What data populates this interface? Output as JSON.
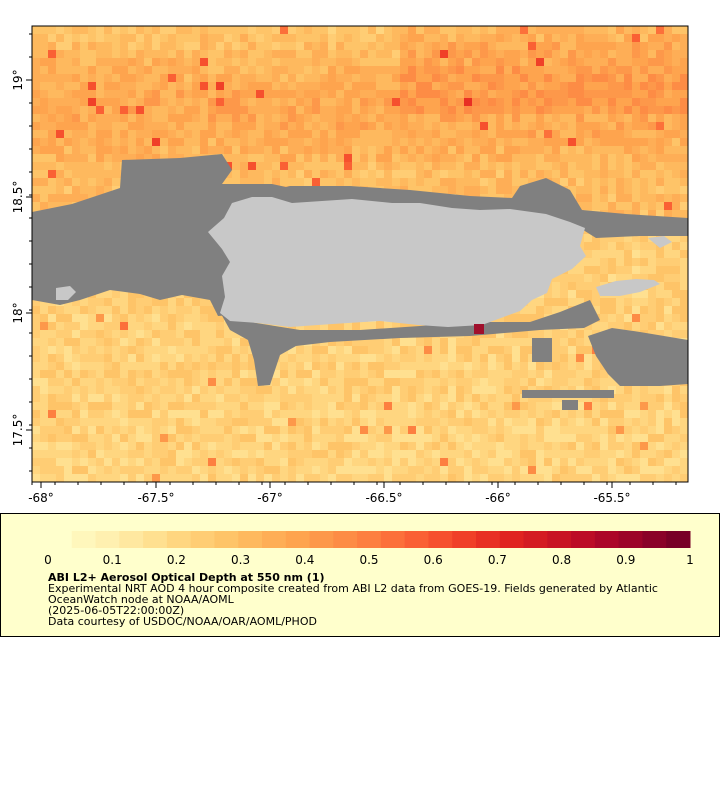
{
  "map": {
    "x_ticks": [
      "-68°",
      "-67.5°",
      "-67°",
      "-66.5°",
      "-66°",
      "-65.5°"
    ],
    "y_ticks": [
      "19°",
      "18.5°",
      "18°",
      "17.5°"
    ],
    "colors": {
      "land": "#c8c8c8",
      "no_data": "#808080",
      "hotspot": "#a0102c"
    }
  },
  "legend": {
    "scale_labels": [
      "0",
      "0.1",
      "0.2",
      "0.3",
      "0.4",
      "0.5",
      "0.6",
      "0.7",
      "0.8",
      "0.9",
      "1"
    ],
    "title": "ABI L2+ Aerosol Optical Depth at 550 nm (1)",
    "description": "Experimental NRT AOD 4 hour composite created from ABI L2 data from GOES-19. Fields generated by Atlantic OceanWatch node at NOAA/AOML",
    "timestamp": "(2025-06-05T22:00:00Z)",
    "credit": "Data courtesy of USDOC/NOAA/OAR/AOML/PHOD",
    "colors": [
      "#ffffcc",
      "#fff7bc",
      "#fff0b0",
      "#ffe8a0",
      "#ffe090",
      "#ffd680",
      "#ffcd74",
      "#fec468",
      "#feb95e",
      "#feae56",
      "#fea44e",
      "#fd984a",
      "#fd8c45",
      "#fd7f40",
      "#fc703a",
      "#fa6034",
      "#f6502e",
      "#f04028",
      "#e83024",
      "#e02420",
      "#d41c22",
      "#c81424",
      "#bc0c26",
      "#ac0628",
      "#9c0428",
      "#8a0228",
      "#780026"
    ]
  }
}
